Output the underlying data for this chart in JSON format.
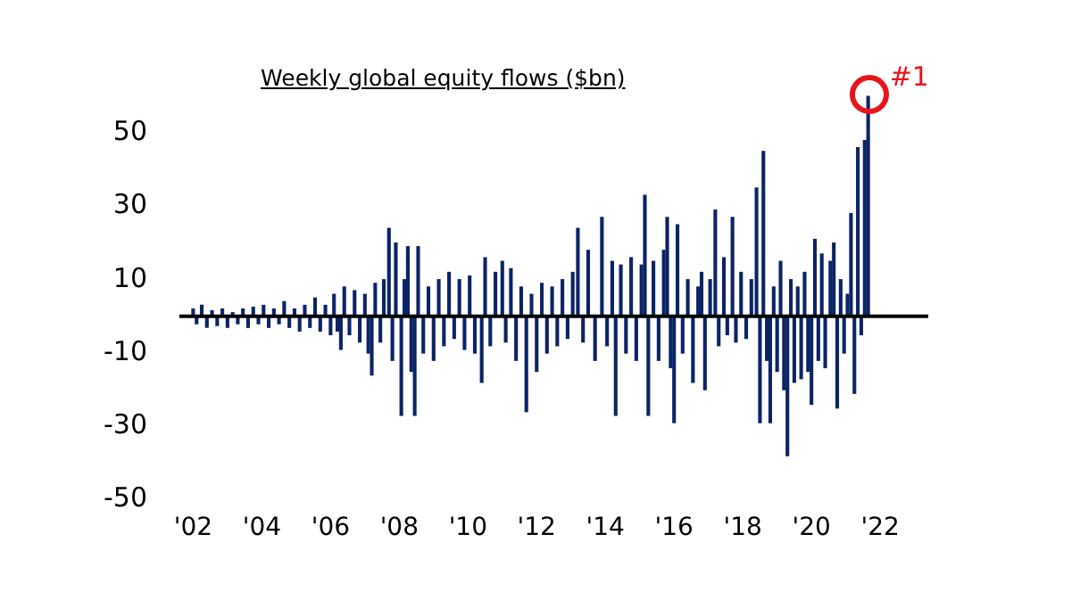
{
  "chart_data": {
    "type": "bar",
    "title": "Weekly global equity flows ($bn)",
    "x": [
      2002.0,
      2002.1,
      2002.25,
      2002.4,
      2002.55,
      2002.7,
      2002.85,
      2003.0,
      2003.15,
      2003.3,
      2003.45,
      2003.6,
      2003.75,
      2003.9,
      2004.05,
      2004.2,
      2004.35,
      2004.5,
      2004.65,
      2004.8,
      2004.95,
      2005.1,
      2005.25,
      2005.4,
      2005.55,
      2005.7,
      2005.85,
      2006.0,
      2006.1,
      2006.2,
      2006.3,
      2006.4,
      2006.55,
      2006.7,
      2006.85,
      2007.0,
      2007.1,
      2007.2,
      2007.3,
      2007.45,
      2007.55,
      2007.7,
      2007.8,
      2007.9,
      2008.06,
      2008.15,
      2008.25,
      2008.35,
      2008.45,
      2008.55,
      2008.7,
      2008.85,
      2009.0,
      2009.15,
      2009.3,
      2009.45,
      2009.6,
      2009.75,
      2009.9,
      2010.05,
      2010.2,
      2010.4,
      2010.5,
      2010.65,
      2010.8,
      2011.0,
      2011.1,
      2011.25,
      2011.4,
      2011.55,
      2011.7,
      2011.85,
      2012.0,
      2012.15,
      2012.3,
      2012.45,
      2012.6,
      2012.75,
      2012.9,
      2013.05,
      2013.2,
      2013.35,
      2013.5,
      2013.7,
      2013.9,
      2014.05,
      2014.2,
      2014.3,
      2014.45,
      2014.6,
      2014.75,
      2014.9,
      2015.05,
      2015.15,
      2015.25,
      2015.4,
      2015.55,
      2015.7,
      2015.8,
      2015.9,
      2016.0,
      2016.1,
      2016.25,
      2016.4,
      2016.55,
      2016.7,
      2016.8,
      2016.9,
      2017.05,
      2017.2,
      2017.3,
      2017.45,
      2017.55,
      2017.7,
      2017.8,
      2017.95,
      2018.1,
      2018.25,
      2018.4,
      2018.5,
      2018.6,
      2018.7,
      2018.8,
      2018.9,
      2019.0,
      2019.1,
      2019.2,
      2019.3,
      2019.4,
      2019.5,
      2019.6,
      2019.7,
      2019.8,
      2019.9,
      2020.0,
      2020.1,
      2020.2,
      2020.3,
      2020.4,
      2020.55,
      2020.65,
      2020.75,
      2020.85,
      2020.95,
      2021.05,
      2021.15,
      2021.25,
      2021.35,
      2021.45,
      2021.55,
      2021.65
    ],
    "series": [
      {
        "color": "#0c2366",
        "values": [
          2,
          -2,
          3,
          -3,
          1.5,
          -2.5,
          2,
          -3,
          1,
          -2,
          2,
          -3,
          2.5,
          -2,
          3,
          -3,
          2,
          -2,
          4,
          -3,
          2,
          -4,
          3,
          -3,
          5,
          -4,
          3,
          -5,
          6,
          -4,
          -9,
          8,
          -5,
          7,
          -7,
          6,
          -10,
          -16,
          9,
          -7,
          10,
          24,
          -12,
          20,
          -27,
          10,
          19,
          -15,
          -27,
          19,
          -10,
          8,
          -12,
          10,
          -8,
          12,
          -6,
          10,
          -9,
          11,
          -10,
          -18,
          16,
          -8,
          12,
          15,
          -7,
          13,
          -12,
          8,
          -26,
          6,
          -15,
          9,
          -10,
          8,
          -8,
          10,
          -6,
          12,
          24,
          -7,
          18,
          -12,
          27,
          -8,
          15,
          -27,
          14,
          -10,
          16,
          -12,
          14,
          33,
          -27,
          15,
          -12,
          18,
          27,
          -14,
          -29,
          25,
          -10,
          10,
          -18,
          8,
          12,
          -20,
          10,
          29,
          -8,
          16,
          -5,
          27,
          -7,
          12,
          -6,
          10,
          35,
          -29,
          45,
          -12,
          -29,
          8,
          -15,
          15,
          -20,
          -38,
          10,
          -18,
          8,
          -17,
          12,
          -15,
          -24,
          21,
          -12,
          17,
          -14,
          15,
          20,
          -25,
          10,
          -10,
          6,
          28,
          -21,
          46,
          -5,
          48,
          60
        ]
      }
    ],
    "xlim": [
      2001.6,
      2023.4
    ],
    "xticks": [
      {
        "value": 2002,
        "label": "'02"
      },
      {
        "value": 2004,
        "label": "'04"
      },
      {
        "value": 2006,
        "label": "'06"
      },
      {
        "value": 2008,
        "label": "'08"
      },
      {
        "value": 2010,
        "label": "'10"
      },
      {
        "value": 2012,
        "label": "'12"
      },
      {
        "value": 2014,
        "label": "'14"
      },
      {
        "value": 2016,
        "label": "'16"
      },
      {
        "value": 2018,
        "label": "'18"
      },
      {
        "value": 2020,
        "label": "'20"
      },
      {
        "value": 2022,
        "label": "'22"
      }
    ],
    "ylim": [
      -50,
      62
    ],
    "yticks": [
      -50,
      -30,
      -10,
      10,
      30,
      50
    ],
    "ref_lines": [
      {
        "axis": "y",
        "value": 0,
        "color": "#000000"
      }
    ],
    "annotations": [
      {
        "text": "#1",
        "x": 2021.65,
        "y": 60
      }
    ],
    "grid": false,
    "legend": false
  }
}
